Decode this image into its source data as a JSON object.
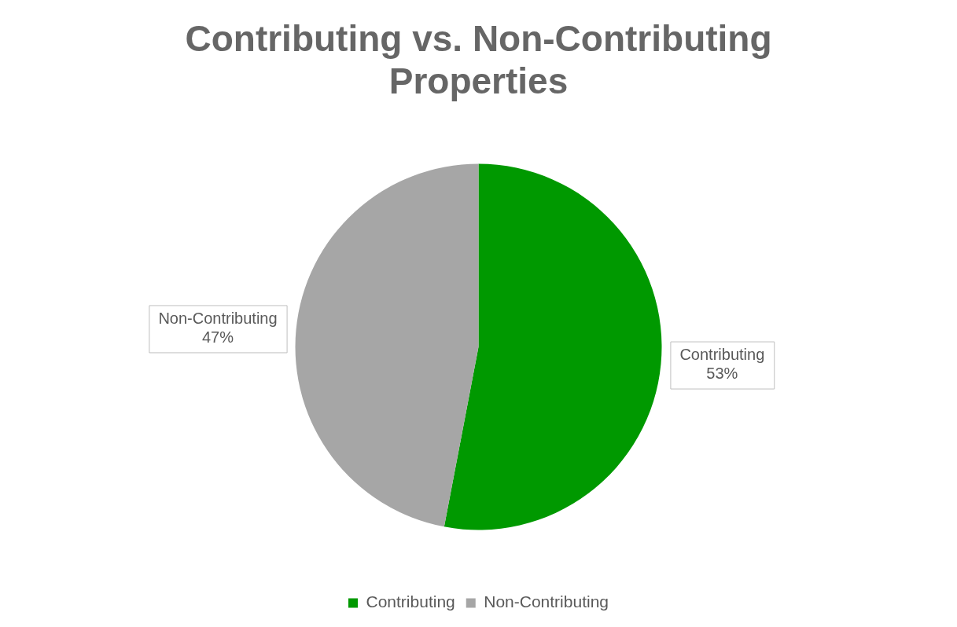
{
  "chart_data": {
    "type": "pie",
    "title": "Contributing vs. Non-Contributing Properties",
    "categories": [
      "Contributing",
      "Non-Contributing"
    ],
    "values": [
      53,
      47
    ],
    "colors": [
      "#009900",
      "#a6a6a6"
    ],
    "value_labels": [
      "53%",
      "47%"
    ],
    "legend": "bottom"
  }
}
